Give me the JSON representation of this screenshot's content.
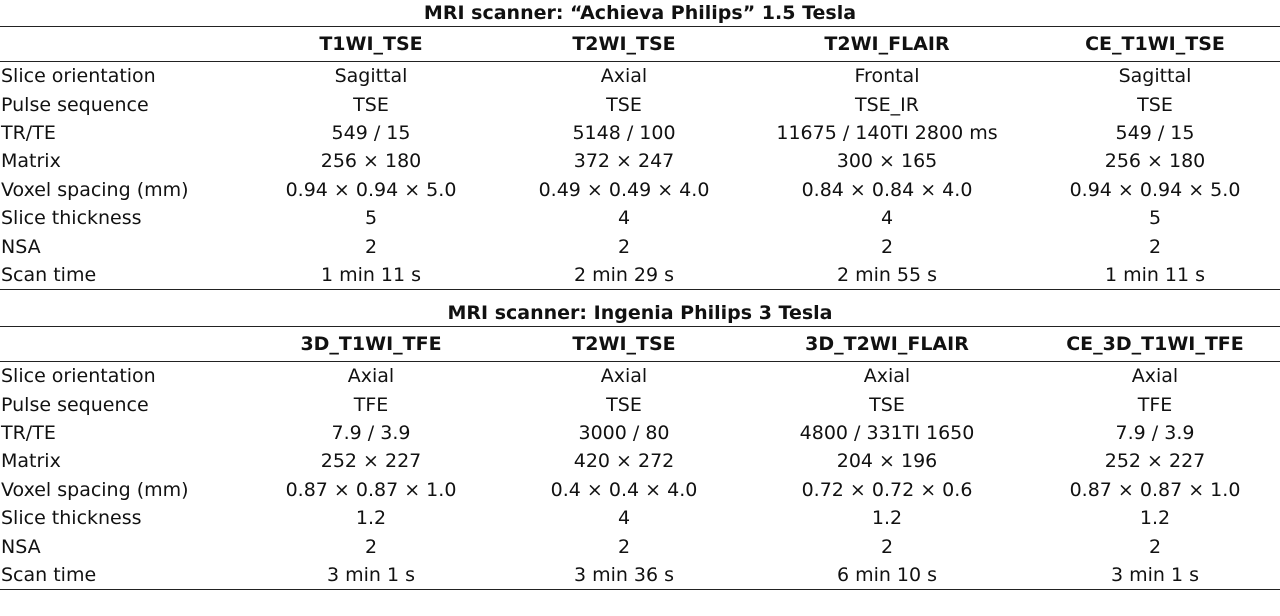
{
  "tables": [
    {
      "title": "MRI scanner: “Achieva Philips” 1.5 Tesla",
      "columns": [
        "T1WI_TSE",
        "T2WI_TSE",
        "T2WI_FLAIR",
        "CE_T1WI_TSE"
      ],
      "rows": [
        {
          "label": "Slice orientation",
          "cells": [
            "Sagittal",
            "Axial",
            "Frontal",
            "Sagittal"
          ]
        },
        {
          "label": "Pulse sequence",
          "cells": [
            "TSE",
            "TSE",
            "TSE_IR",
            "TSE"
          ]
        },
        {
          "label": "TR/TE",
          "cells": [
            "549 / 15",
            "5148 / 100",
            "11675 / 140TI 2800 ms",
            "549 / 15"
          ]
        },
        {
          "label": "Matrix",
          "cells": [
            "256 × 180",
            "372 × 247",
            "300 × 165",
            "256 × 180"
          ]
        },
        {
          "label": "Voxel spacing (mm)",
          "cells": [
            "0.94 × 0.94 × 5.0",
            "0.49 × 0.49 × 4.0",
            "0.84 × 0.84 × 4.0",
            "0.94 × 0.94 × 5.0"
          ]
        },
        {
          "label": "Slice thickness",
          "cells": [
            "5",
            "4",
            "4",
            "5"
          ]
        },
        {
          "label": "NSA",
          "cells": [
            "2",
            "2",
            "2",
            "2"
          ]
        },
        {
          "label": "Scan time",
          "cells": [
            "1 min 11 s",
            "2 min 29 s",
            "2 min 55 s",
            "1 min 11 s"
          ]
        }
      ]
    },
    {
      "title": "MRI scanner: Ingenia Philips 3 Tesla",
      "columns": [
        "3D_T1WI_TFE",
        "T2WI_TSE",
        "3D_T2WI_FLAIR",
        "CE_3D_T1WI_TFE"
      ],
      "rows": [
        {
          "label": "Slice orientation",
          "cells": [
            "Axial",
            "Axial",
            "Axial",
            "Axial"
          ]
        },
        {
          "label": "Pulse sequence",
          "cells": [
            "TFE",
            "TSE",
            "TSE",
            "TFE"
          ]
        },
        {
          "label": "TR/TE",
          "cells": [
            "7.9 / 3.9",
            "3000 / 80",
            "4800 / 331TI 1650",
            "7.9 / 3.9"
          ]
        },
        {
          "label": "Matrix",
          "cells": [
            "252 × 227",
            "420 × 272",
            "204 × 196",
            "252 × 227"
          ]
        },
        {
          "label": "Voxel spacing (mm)",
          "cells": [
            "0.87 × 0.87 × 1.0",
            "0.4 × 0.4 × 4.0",
            "0.72 × 0.72 × 0.6",
            "0.87 × 0.87 × 1.0"
          ]
        },
        {
          "label": "Slice thickness",
          "cells": [
            "1.2",
            "4",
            "1.2",
            "1.2"
          ]
        },
        {
          "label": "NSA",
          "cells": [
            "2",
            "2",
            "2",
            "2"
          ]
        },
        {
          "label": "Scan time",
          "cells": [
            "3 min 1 s",
            "3 min 36 s",
            "6 min 10 s",
            "3 min 1 s"
          ]
        }
      ]
    }
  ]
}
